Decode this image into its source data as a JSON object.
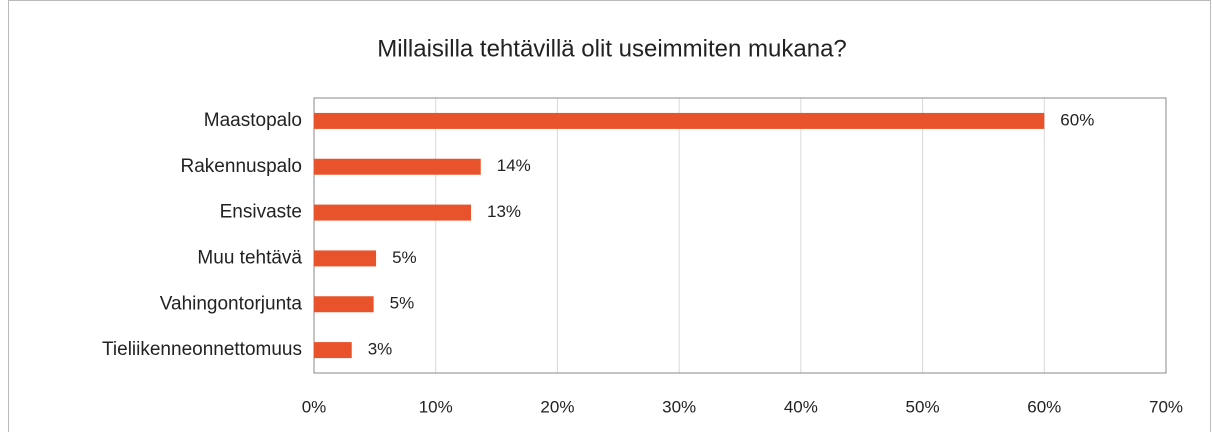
{
  "chart_data": {
    "type": "hbar",
    "title": "Millaisilla tehtävillä olit useimmiten mukana?",
    "categories": [
      "Maastopalo",
      "Rakennuspalo",
      "Ensivaste",
      "Muu tehtävä",
      "Vahingontorjunta",
      "Tieliikenneonnettomuus"
    ],
    "values": [
      60,
      13.7,
      12.9,
      5.1,
      4.9,
      3.1
    ],
    "value_labels": [
      "60%",
      "14%",
      "13%",
      "5%",
      "5%",
      "3%"
    ],
    "color": "#e8532b",
    "xlim": [
      0,
      70
    ],
    "xticks": [
      {
        "value": 0,
        "label": "0%"
      },
      {
        "value": 10,
        "label": "10%"
      },
      {
        "value": 20,
        "label": "20%"
      },
      {
        "value": 30,
        "label": "30%"
      },
      {
        "value": 40,
        "label": "40%"
      },
      {
        "value": 50,
        "label": "50%"
      },
      {
        "value": 60,
        "label": "60%"
      },
      {
        "value": 70,
        "label": "70%"
      }
    ],
    "grid": true
  }
}
